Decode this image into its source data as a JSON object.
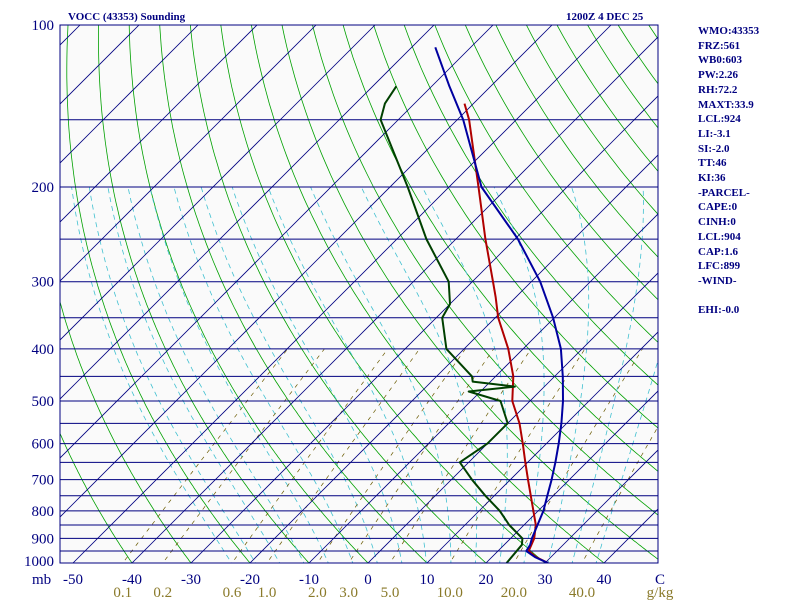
{
  "header": {
    "station": "VOCC (43353) Sounding",
    "time": "1200Z  4 DEC 25"
  },
  "side_panel": {
    "lines": [
      "WMO:43353",
      "FRZ:561",
      "WB0:603",
      "PW:2.26",
      "RH:72.2",
      "MAXT:33.9",
      "LCL:924",
      "LI:-3.1",
      "SI:-2.0",
      "TT:46",
      "KI:36",
      "-PARCEL-",
      "CAPE:0",
      "CINH:0",
      "LCL:904",
      "CAP:1.6",
      "LFC:899",
      "-WIND-",
      "",
      "EHI:-0.0"
    ]
  },
  "chart_data": {
    "type": "line",
    "title": "VOCC (43353) Sounding",
    "subtitle": "1200Z  4 DEC 25",
    "pressure_axis": {
      "label": "mb",
      "range": [
        1000,
        100
      ],
      "scale": "log",
      "tick_labels": [
        "100",
        "200",
        "300",
        "400",
        "500",
        "600",
        "700",
        "800",
        "900",
        "1000"
      ],
      "tick_values": [
        100,
        200,
        300,
        400,
        500,
        600,
        700,
        800,
        900,
        1000
      ],
      "isobars": [
        100,
        150,
        200,
        250,
        300,
        350,
        400,
        450,
        500,
        550,
        600,
        650,
        700,
        750,
        800,
        850,
        900,
        950,
        1000
      ]
    },
    "temperature_axis": {
      "label": "C",
      "range": [
        -50,
        50
      ],
      "skew": true,
      "tick_labels": [
        "-50",
        "-40",
        "-30",
        "-20",
        "-10",
        "0",
        "10",
        "20",
        "30",
        "40"
      ],
      "tick_values": [
        -50,
        -40,
        -30,
        -20,
        -10,
        0,
        10,
        20,
        30,
        40
      ]
    },
    "mixing_ratio_axis": {
      "label": "g/kg",
      "tick_labels": [
        "0.1",
        "0.2",
        "0.6",
        "1.0",
        "2.0",
        "3.0",
        "5.0",
        "10.0",
        "20.0",
        "40.0"
      ],
      "tick_values": [
        0.1,
        0.2,
        0.6,
        1.0,
        2.0,
        3.0,
        5.0,
        10.0,
        20.0,
        40.0
      ]
    },
    "series": [
      {
        "name": "temperature",
        "color": "#b00000",
        "points": [
          [
            1000,
            30.5
          ],
          [
            975,
            27.5
          ],
          [
            950,
            25.2
          ],
          [
            925,
            24.6
          ],
          [
            900,
            24.0
          ],
          [
            850,
            22.0
          ],
          [
            800,
            19.2
          ],
          [
            750,
            16.2
          ],
          [
            700,
            13.0
          ],
          [
            650,
            9.6
          ],
          [
            600,
            6.0
          ],
          [
            550,
            2.0
          ],
          [
            500,
            -3.0
          ],
          [
            450,
            -7.0
          ],
          [
            400,
            -12.5
          ],
          [
            350,
            -19.5
          ],
          [
            320,
            -23.5
          ],
          [
            300,
            -26.5
          ],
          [
            250,
            -35.0
          ],
          [
            200,
            -45.0
          ],
          [
            150,
            -58.0
          ],
          [
            140,
            -61.5
          ]
        ]
      },
      {
        "name": "dewpoint",
        "color": "#004000",
        "points": [
          [
            1000,
            23.5
          ],
          [
            925,
            23.0
          ],
          [
            900,
            22.0
          ],
          [
            850,
            17.5
          ],
          [
            800,
            13.5
          ],
          [
            750,
            8.5
          ],
          [
            700,
            3.5
          ],
          [
            650,
            -1.5
          ],
          [
            600,
            0.0
          ],
          [
            550,
            0.0
          ],
          [
            500,
            -5.0
          ],
          [
            480,
            -12.0
          ],
          [
            470,
            -5.0
          ],
          [
            460,
            -13.0
          ],
          [
            450,
            -14.0
          ],
          [
            400,
            -23.0
          ],
          [
            350,
            -29.0
          ],
          [
            330,
            -30.0
          ],
          [
            300,
            -34.0
          ],
          [
            250,
            -45.0
          ],
          [
            200,
            -57.0
          ],
          [
            150,
            -73.0
          ],
          [
            140,
            -75.0
          ],
          [
            130,
            -76.0
          ]
        ]
      },
      {
        "name": "parcel",
        "color": "#0000a0",
        "points": [
          [
            1000,
            30.5
          ],
          [
            975,
            27.3
          ],
          [
            950,
            24.8
          ],
          [
            925,
            24.4
          ],
          [
            900,
            23.6
          ],
          [
            850,
            22.3
          ],
          [
            800,
            20.9
          ],
          [
            750,
            19.0
          ],
          [
            700,
            17.0
          ],
          [
            650,
            14.7
          ],
          [
            600,
            12.1
          ],
          [
            550,
            9.1
          ],
          [
            500,
            5.6
          ],
          [
            450,
            1.4
          ],
          [
            400,
            -3.6
          ],
          [
            350,
            -10.2
          ],
          [
            300,
            -18.5
          ],
          [
            250,
            -29.5
          ],
          [
            200,
            -44.5
          ],
          [
            150,
            -59.0
          ],
          [
            130,
            -67.0
          ],
          [
            110,
            -76.0
          ]
        ]
      }
    ],
    "colors": {
      "frame": "#000080",
      "isobar": "#000080",
      "isotherm": "#000080",
      "dry_adiabat": "#00a000",
      "moist_adiabat": "#40c0d0",
      "mixing_ratio": "#6a5a00",
      "label": "#000080",
      "mixing_label": "#8a7a2a"
    }
  }
}
